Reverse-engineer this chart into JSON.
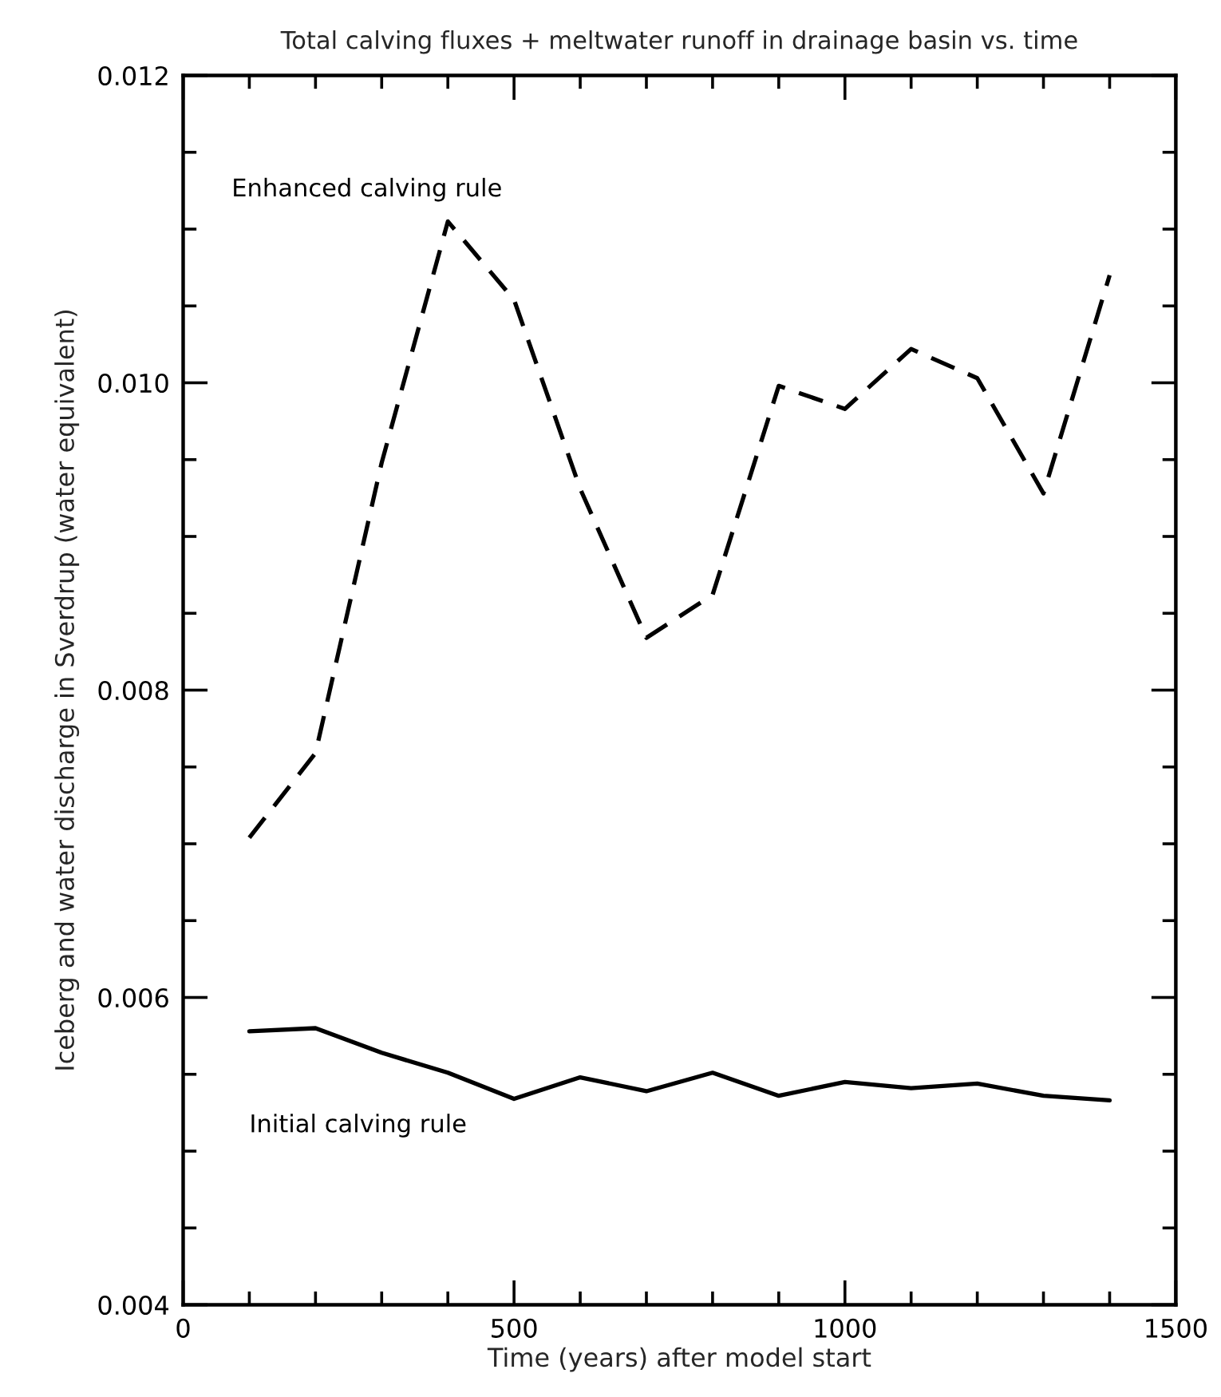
{
  "chart_data": {
    "type": "line",
    "title": "Total calving fluxes + meltwater runoff in drainage basin vs. time",
    "xlabel": "Time (years) after model start",
    "ylabel": "Iceberg and water discharge in Sverdrup (water equivalent)",
    "x": [
      100,
      200,
      300,
      400,
      500,
      600,
      700,
      800,
      900,
      1000,
      1100,
      1200,
      1300,
      1400
    ],
    "series": [
      {
        "name": "Enhanced calving rule",
        "color": "#000000",
        "line_style": "dashed",
        "values": [
          0.00704,
          0.00759,
          0.00948,
          0.01105,
          0.01054,
          0.00931,
          0.00834,
          0.00862,
          0.00998,
          0.00983,
          0.01022,
          0.01003,
          0.00928,
          0.0107
        ]
      },
      {
        "name": "Initial calving rule",
        "color": "#000000",
        "line_style": "solid",
        "values": [
          0.00578,
          0.0058,
          0.00564,
          0.00551,
          0.00534,
          0.00548,
          0.00539,
          0.00551,
          0.00536,
          0.00545,
          0.00541,
          0.00544,
          0.00536,
          0.00533
        ]
      }
    ],
    "xlim": [
      0,
      1500
    ],
    "xticks": [
      0,
      {
        "value": 100,
        "label": null
      },
      {
        "value": 200,
        "label": null
      },
      {
        "value": 300,
        "label": null
      },
      {
        "value": 400,
        "label": null
      },
      500,
      {
        "value": 600,
        "label": null
      },
      {
        "value": 700,
        "label": null
      },
      {
        "value": 800,
        "label": null
      },
      {
        "value": 900,
        "label": null
      },
      1000,
      {
        "value": 1100,
        "label": null
      },
      {
        "value": 1200,
        "label": null
      },
      {
        "value": 1300,
        "label": null
      },
      {
        "value": 1400,
        "label": null
      },
      1500
    ],
    "ylim": [
      0.004,
      0.012
    ],
    "yticks": [
      0.004,
      {
        "value": 0.0045,
        "label": null
      },
      {
        "value": 0.005,
        "label": null
      },
      {
        "value": 0.0055,
        "label": null
      },
      0.006,
      {
        "value": 0.0065,
        "label": null
      },
      {
        "value": 0.007,
        "label": null
      },
      {
        "value": 0.0075,
        "label": null
      },
      0.008,
      {
        "value": 0.0085,
        "label": null
      },
      {
        "value": 0.009,
        "label": null
      },
      {
        "value": 0.0095,
        "label": null
      },
      {
        "value": 0.01,
        "label": "0.010"
      },
      {
        "value": 0.0105,
        "label": null
      },
      {
        "value": 0.011,
        "label": null
      },
      {
        "value": 0.0115,
        "label": null
      },
      0.012
    ],
    "grid": false,
    "legend": false
  }
}
